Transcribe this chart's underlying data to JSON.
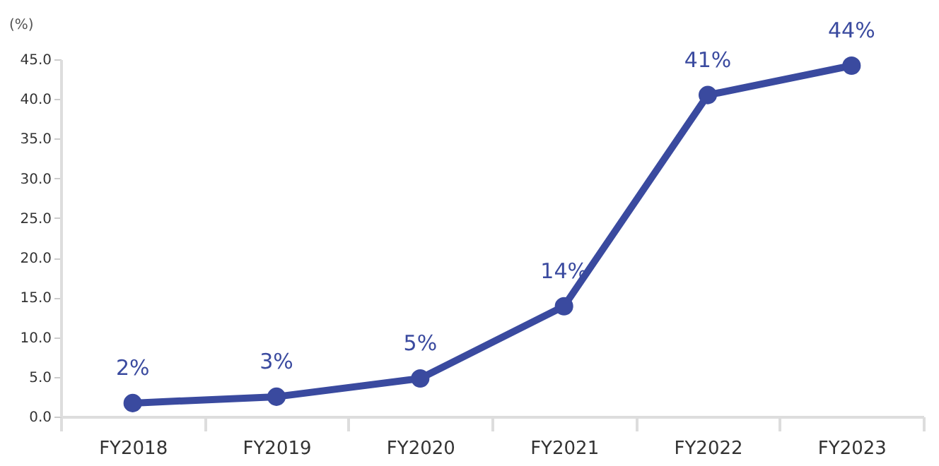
{
  "chart_data": {
    "type": "line",
    "ylabel": "(%)",
    "categories": [
      "FY2018",
      "FY2019",
      "FY2020",
      "FY2021",
      "FY2022",
      "FY2023"
    ],
    "series": [
      {
        "color": "#3a4a9f",
        "values": [
          1.7,
          2.5,
          4.8,
          13.9,
          40.5,
          44.2
        ],
        "value_labels": [
          "2%",
          "3%",
          "5%",
          "14%",
          "41%",
          "44%"
        ]
      }
    ],
    "ylim": [
      0,
      45
    ],
    "yticks": [
      {
        "value": 0,
        "label": "0.0"
      },
      {
        "value": 5,
        "label": "5.0"
      },
      {
        "value": 10,
        "label": "10.0"
      },
      {
        "value": 15,
        "label": "15.0"
      },
      {
        "value": 20,
        "label": "20.0"
      },
      {
        "value": 25,
        "label": "25.0"
      },
      {
        "value": 30,
        "label": "30.0"
      },
      {
        "value": 35,
        "label": "35.0"
      },
      {
        "value": 40,
        "label": "40.0"
      },
      {
        "value": 45,
        "label": "45.0"
      }
    ],
    "marker": "circle",
    "line_style": "solid"
  }
}
